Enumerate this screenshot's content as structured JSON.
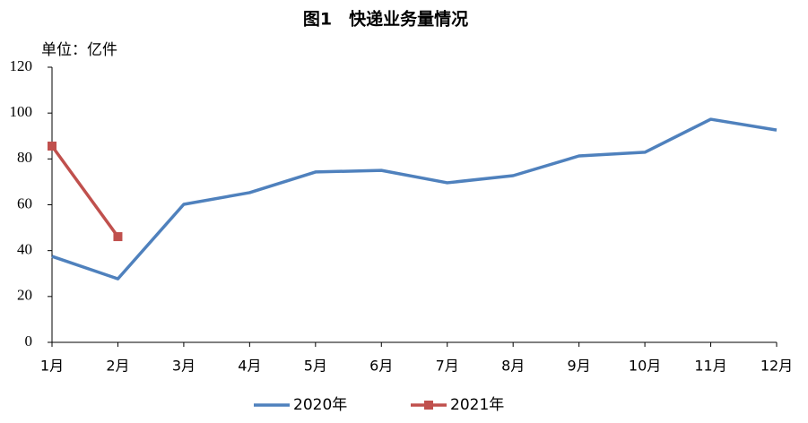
{
  "chart_data": {
    "type": "line",
    "title": "图1　快递业务量情况",
    "unit_label": "单位：亿件",
    "categories": [
      "1月",
      "2月",
      "3月",
      "4月",
      "5月",
      "6月",
      "7月",
      "8月",
      "9月",
      "10月",
      "11月",
      "12月"
    ],
    "series": [
      {
        "name": "2020年",
        "color": "#4f81bd",
        "values": [
          37.5,
          27.7,
          60.2,
          65.3,
          74.3,
          75,
          69.6,
          72.7,
          81.3,
          82.9,
          97.3,
          92.6
        ]
      },
      {
        "name": "2021年",
        "color": "#c0504d",
        "marker": "square",
        "values": [
          85.6,
          46.1,
          null,
          null,
          null,
          null,
          null,
          null,
          null,
          null,
          null,
          null
        ]
      }
    ],
    "ylim": [
      0,
      120
    ],
    "yticks": [
      0,
      20,
      40,
      60,
      80,
      100,
      120
    ],
    "grid": false,
    "legend": "bottom"
  }
}
